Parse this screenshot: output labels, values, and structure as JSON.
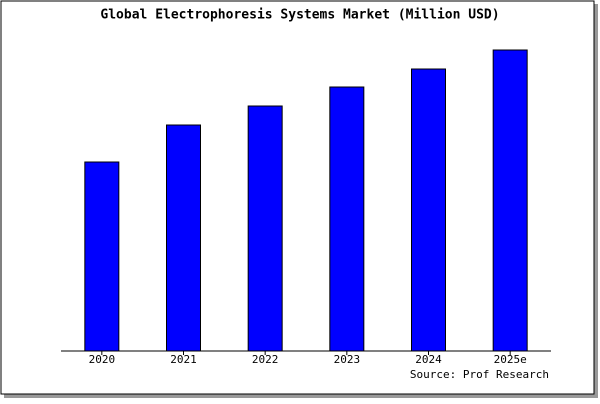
{
  "chart_data": {
    "type": "bar",
    "title": "Global Electrophoresis Systems Market (Million USD)",
    "categories": [
      "2020",
      "2021",
      "2022",
      "2023",
      "2024",
      "2025e"
    ],
    "values": [
      189,
      226,
      245,
      264,
      282,
      301
    ],
    "color": "#0000ff",
    "source": "Source: Prof Research"
  }
}
